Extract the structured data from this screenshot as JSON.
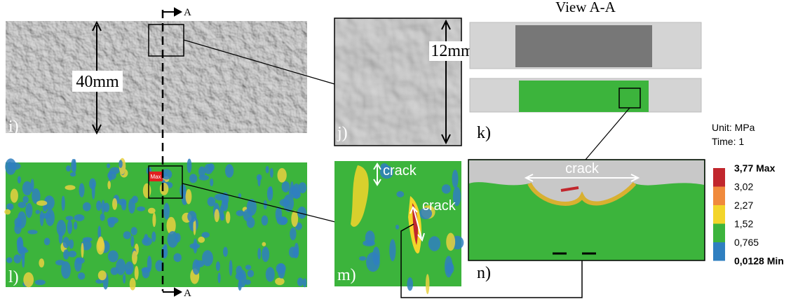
{
  "section_marker": {
    "top": "A",
    "bottom": "A"
  },
  "view_title": "View A-A",
  "dimensions": {
    "width": "40mm",
    "detail": "12mm"
  },
  "panel_labels": [
    "i)",
    "j)",
    "k)",
    "l)",
    "m)",
    "n)"
  ],
  "crack_labels": [
    "crack",
    "crack",
    "crack"
  ],
  "max_marker": "Max",
  "legend": {
    "unit": "Unit: MPa",
    "time": "Time: 1",
    "labels": [
      "3,77 Max",
      "3,02",
      "2,27",
      "1,52",
      "0,765",
      "0,0128 Min"
    ],
    "colors": [
      "#c1272d",
      "#f08a3c",
      "#f3d52a",
      "#3cb43c",
      "#2f7fc0"
    ]
  }
}
